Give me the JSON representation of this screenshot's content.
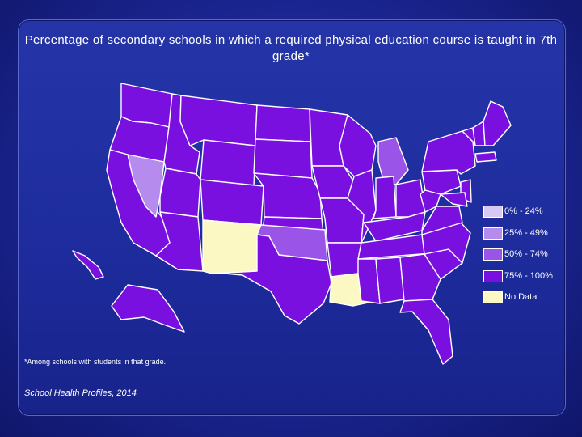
{
  "title": "Percentage of secondary schools in which a required physical education course is taught in 7th grade*",
  "legend": [
    {
      "label": "0% - 24%",
      "color": "#d8c8f4"
    },
    {
      "label": "25% - 49%",
      "color": "#b58cee"
    },
    {
      "label": "50% - 74%",
      "color": "#9a55e8"
    },
    {
      "label": "75% - 100%",
      "color": "#7a10e0"
    },
    {
      "label": "No Data",
      "color": "#fcf8c4"
    }
  ],
  "state_categories": {
    "NV": "25% - 49%",
    "MI": "50% - 74%",
    "OK": "50% - 74%",
    "NM": "No Data",
    "LA": "No Data",
    "other_states": "75% - 100%"
  },
  "footnote": "*Among schools with students in that grade.",
  "source": "School Health Profiles, 2014"
}
